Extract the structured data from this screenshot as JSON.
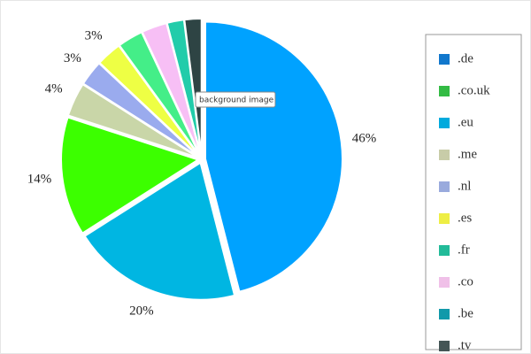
{
  "chart_data": {
    "type": "pie",
    "categories": [
      ".de",
      ".co.uk",
      ".eu",
      ".me",
      ".nl",
      ".es",
      ".fr",
      ".co",
      ".be",
      ".tv"
    ],
    "values": [
      46,
      20,
      14,
      4,
      3,
      3,
      3,
      3,
      2,
      2
    ],
    "value_labels": [
      "46%",
      "20%",
      "14%",
      "4%",
      "3%",
      "3%",
      null,
      null,
      null,
      null
    ],
    "colors": [
      "#00a2ff",
      "#00b6e2",
      "#3cff00",
      "#c9d6a8",
      "#9aabee",
      "#eeff44",
      "#44ee88",
      "#f7bff5",
      "#22ccaa",
      "#2e4444"
    ],
    "legend_colors": [
      "#1177cc",
      "#33bb44",
      "#00aadd",
      "#c8cca8",
      "#99aadd",
      "#eeee44",
      "#22bb99",
      "#f0c0e8",
      "#1199aa",
      "#445555"
    ],
    "legend": "right",
    "tooltip": "background image"
  }
}
